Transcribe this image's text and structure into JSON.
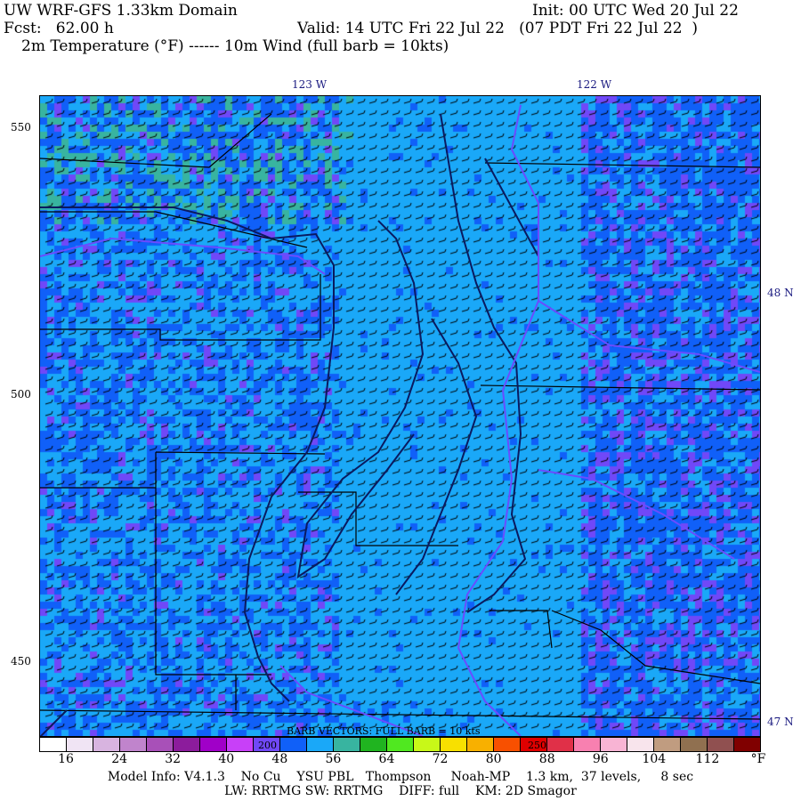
{
  "header": {
    "title": "UW WRF-GFS 1.33km Domain",
    "init": "Init: 00 UTC Wed 20 Jul 22",
    "fcst": "Fcst:   62.00 h",
    "valid": "Valid: 14 UTC Fri 22 Jul 22   (07 PDT Fri 22 Jul 22  )",
    "fields": "2m Temperature (°F) ------ 10m Wind (full barb = 10kts)"
  },
  "map": {
    "lon_labels": [
      "123 W",
      "122 W"
    ],
    "lat_labels": [
      "48 N",
      "47 N"
    ],
    "grid_labels": [
      "550",
      "500",
      "450"
    ],
    "barb_note": "BARB VECTORS:  FULL BARB = 10 kts",
    "colors": {
      "water": "#0a1a60",
      "coast": "#0a1a60",
      "boundary": "#000000",
      "rivers": "#6a4cff"
    }
  },
  "colorbar": {
    "colors": [
      "#ffffff",
      "#f0e4f4",
      "#d8b4e0",
      "#c084cc",
      "#a850b8",
      "#8c1c9c",
      "#a000c8",
      "#c840f8",
      "#7048f8",
      "#1060f8",
      "#1aa8f8",
      "#38b4a0",
      "#20b420",
      "#50e820",
      "#c8f818",
      "#f8e000",
      "#f8b000",
      "#f85000",
      "#e00000",
      "#e03048",
      "#f880b0",
      "#f8b4d4",
      "#f8e4ec",
      "#c09c80",
      "#907050",
      "#905050",
      "#800000"
    ],
    "labels": [
      "16",
      "24",
      "32",
      "40",
      "48",
      "56",
      "64",
      "72",
      "80",
      "88",
      "96",
      "104",
      "112"
    ],
    "unit": "°F",
    "overlay_labels": [
      "200",
      "250"
    ]
  },
  "footer": {
    "line1": "Model Info: V4.1.3    No Cu    YSU PBL   Thompson     Noah-MP    1.3 km,  37 levels,     8 sec",
    "line2": "LW: RRTMG SW: RRTMG    DIFF: full    KM: 2D Smagor"
  }
}
